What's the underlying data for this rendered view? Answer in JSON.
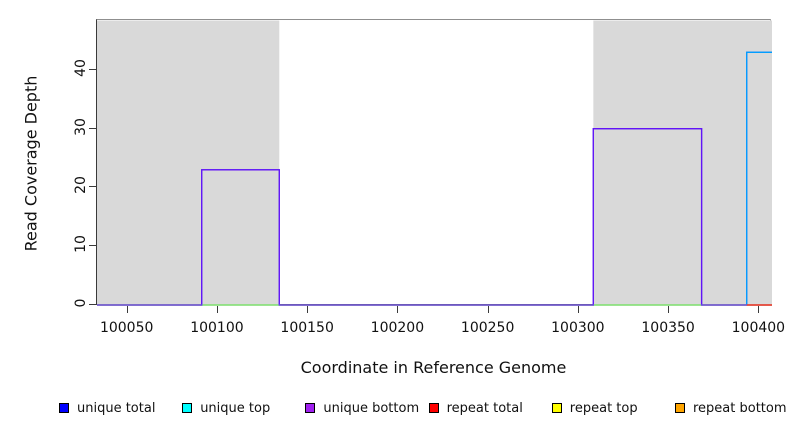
{
  "chart_data": {
    "type": "line",
    "subtype": "step-coverage",
    "title": "",
    "xlabel": "Coordinate in Reference Genome",
    "ylabel": "Read Coverage Depth",
    "xlim": [
      100033,
      100407
    ],
    "ylim": [
      0,
      48.5
    ],
    "x_ticks": [
      100050,
      100100,
      100150,
      100200,
      100250,
      100300,
      100350,
      100400
    ],
    "y_ticks": [
      0,
      10,
      20,
      30,
      40
    ],
    "grid": false,
    "legend_position": "bottom",
    "background_color": "#ffffff",
    "repeat_region_color": "#d9d9d9",
    "repeat_regions": [
      {
        "start": 100033,
        "end": 100134
      },
      {
        "start": 100308,
        "end": 100407
      }
    ],
    "series": [
      {
        "name": "repeat bottom",
        "color": "#FFA500",
        "draw_opacity": 1,
        "points": [
          [
            100033,
            0
          ],
          [
            100407,
            0
          ]
        ]
      },
      {
        "name": "repeat total",
        "color": "#FF0000",
        "draw_opacity": 1,
        "points": [
          [
            100033,
            0
          ],
          [
            100407,
            0
          ]
        ]
      },
      {
        "name": "repeat top",
        "color": "#FFFF00",
        "draw_opacity": 1,
        "points": [
          [
            100033,
            0
          ],
          [
            100407,
            0
          ]
        ]
      },
      {
        "name": "unique total",
        "color": "#0000FF",
        "draw_opacity": 1,
        "points": [
          [
            100033,
            0
          ],
          [
            100091,
            0
          ],
          [
            100091,
            23
          ],
          [
            100134,
            23
          ],
          [
            100134,
            0
          ],
          [
            100308,
            0
          ],
          [
            100308,
            30
          ],
          [
            100368,
            30
          ],
          [
            100368,
            0
          ],
          [
            100393,
            0
          ],
          [
            100393,
            43
          ],
          [
            100407,
            43
          ]
        ]
      },
      {
        "name": "unique top",
        "color": "#00FFFF",
        "draw_opacity": 0.62,
        "points": [
          [
            100033,
            0
          ],
          [
            100393,
            0
          ],
          [
            100393,
            43
          ],
          [
            100407,
            43
          ]
        ]
      },
      {
        "name": "unique bottom",
        "color": "#A020F0",
        "draw_opacity": 0.62,
        "points": [
          [
            100033,
            0
          ],
          [
            100091,
            0
          ],
          [
            100091,
            23
          ],
          [
            100134,
            23
          ],
          [
            100134,
            0
          ],
          [
            100308,
            0
          ],
          [
            100308,
            30
          ],
          [
            100368,
            30
          ],
          [
            100368,
            0
          ],
          [
            100407,
            0
          ]
        ]
      }
    ],
    "baseline_overlays": [
      {
        "color": "#E2413D",
        "value": 0,
        "from": 100393,
        "to": 100407
      }
    ],
    "legend": [
      {
        "label": "unique total",
        "color": "#0000FF"
      },
      {
        "label": "unique top",
        "color": "#00FFFF"
      },
      {
        "label": "unique bottom",
        "color": "#A020F0"
      },
      {
        "label": "repeat total",
        "color": "#FF0000"
      },
      {
        "label": "repeat top",
        "color": "#FFFF00"
      },
      {
        "label": "repeat bottom",
        "color": "#FFA500"
      }
    ]
  }
}
